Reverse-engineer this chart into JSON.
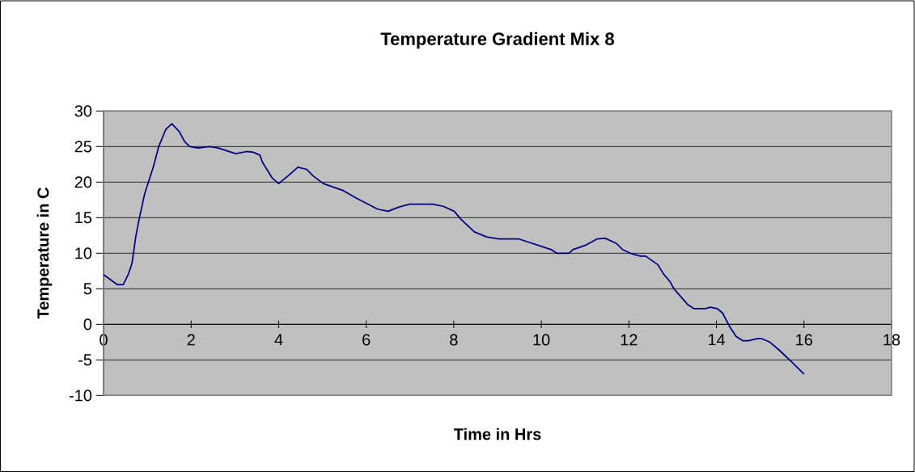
{
  "chart_data": {
    "type": "line",
    "title": "Temperature Gradient Mix 8",
    "xlabel": "Time in Hrs",
    "ylabel": "Temperature in C",
    "series": [
      {
        "color": "#000080",
        "x": [
          0,
          0.31,
          0.45,
          0.57,
          0.65,
          0.74,
          0.82,
          0.94,
          1.14,
          1.26,
          1.42,
          1.56,
          1.73,
          1.85,
          1.97,
          2.16,
          2.43,
          2.62,
          3.02,
          3.27,
          3.42,
          3.57,
          3.63,
          3.85,
          4.0,
          4.22,
          4.44,
          4.64,
          4.78,
          5.02,
          5.48,
          5.76,
          6.26,
          6.5,
          6.75,
          6.99,
          7.52,
          7.76,
          8.01,
          8.16,
          8.47,
          8.75,
          9.03,
          9.49,
          10.23,
          10.35,
          10.63,
          10.72,
          11.0,
          11.27,
          11.46,
          11.71,
          11.86,
          12.03,
          12.26,
          12.38,
          12.66,
          12.79,
          12.94,
          13.03,
          13.34,
          13.49,
          13.74,
          13.86,
          14.02,
          14.14,
          14.3,
          14.45,
          14.6,
          14.73,
          14.94,
          15.03,
          15.22,
          15.43,
          15.74,
          16.0
        ],
        "values": [
          7.0,
          5.6,
          5.6,
          7.1,
          8.6,
          12.5,
          15.0,
          18.4,
          22.2,
          25.0,
          27.4,
          28.2,
          27.1,
          25.7,
          25.0,
          24.8,
          25.0,
          24.8,
          24.0,
          24.3,
          24.2,
          23.8,
          22.8,
          20.6,
          19.8,
          20.9,
          22.1,
          21.8,
          20.9,
          19.8,
          18.8,
          17.8,
          16.2,
          15.9,
          16.5,
          16.9,
          16.9,
          16.6,
          15.9,
          14.8,
          13.0,
          12.3,
          12.0,
          12.0,
          10.5,
          10.0,
          10.0,
          10.5,
          11.1,
          12.0,
          12.1,
          11.4,
          10.5,
          10.0,
          9.6,
          9.6,
          8.4,
          7.1,
          6.0,
          5.0,
          2.8,
          2.2,
          2.2,
          2.4,
          2.2,
          1.6,
          -0.3,
          -1.7,
          -2.3,
          -2.3,
          -2.0,
          -2.0,
          -2.5,
          -3.6,
          -5.4,
          -7.0
        ]
      }
    ],
    "xlim": [
      0,
      18
    ],
    "xticks": [
      0,
      2,
      4,
      6,
      8,
      10,
      12,
      14,
      16,
      18
    ],
    "ylim": [
      -10,
      30
    ],
    "yticks": [
      -10,
      -5,
      0,
      5,
      10,
      15,
      20,
      25,
      30
    ],
    "grid": "y"
  }
}
